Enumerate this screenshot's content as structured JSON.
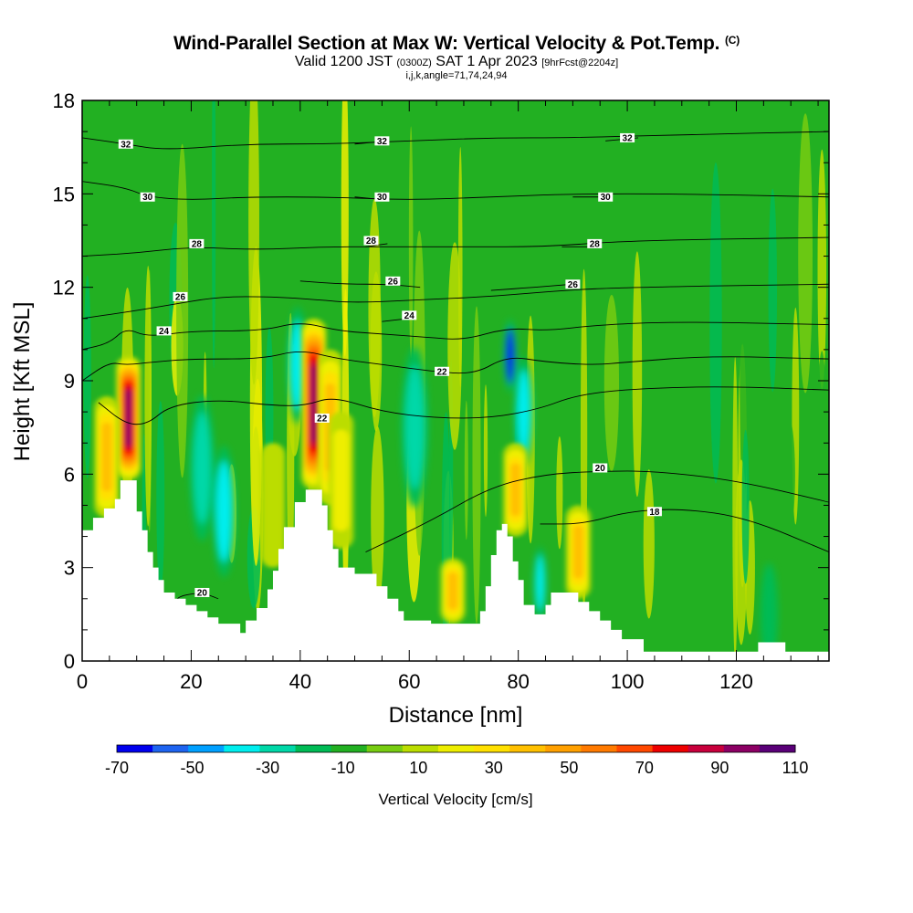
{
  "title": {
    "main": "Wind-Parallel Section at Max W: Vertical Velocity & Pot.Temp.",
    "main_suffix": "(C)",
    "valid_prefix": "Valid 1200 JST",
    "valid_zulu": "(0300Z)",
    "valid_date": "SAT 1 Apr 2023",
    "forecast": "[9hrFcst@2204z]",
    "indices": "i,j,k,angle=71,74,24,94"
  },
  "chart_data": {
    "type": "heatmap",
    "xlabel": "Distance [nm]",
    "ylabel": "Height [Kft MSL]",
    "xlim": [
      0,
      137
    ],
    "ylim": [
      0,
      18
    ],
    "x_ticks": [
      "0",
      "20",
      "40",
      "60",
      "80",
      "100",
      "120"
    ],
    "y_ticks": [
      "0",
      "3",
      "6",
      "9",
      "12",
      "15",
      "18"
    ],
    "colorbar": {
      "label": "Vertical Velocity [cm/s]",
      "tick_labels": [
        "-70",
        "-50",
        "-30",
        "-10",
        "10",
        "30",
        "50",
        "70",
        "90",
        "110"
      ],
      "levels": [
        -70,
        -60,
        -50,
        -40,
        -30,
        -20,
        -10,
        0,
        10,
        20,
        30,
        40,
        50,
        60,
        70,
        80,
        90,
        100,
        110
      ],
      "colors": [
        "#0000ee",
        "#1e64f0",
        "#00a0ff",
        "#00eeee",
        "#00d8a8",
        "#00bb55",
        "#22b022",
        "#77cc11",
        "#bbdd00",
        "#eeee00",
        "#ffe000",
        "#ffc000",
        "#ffa000",
        "#ff7a00",
        "#ff4800",
        "#ee0000",
        "#c8003c",
        "#8c0064",
        "#5a0078"
      ]
    },
    "terrain": [
      [
        0,
        4.2
      ],
      [
        2,
        4.2
      ],
      [
        2,
        4.6
      ],
      [
        4,
        4.6
      ],
      [
        4,
        4.9
      ],
      [
        6,
        4.9
      ],
      [
        6,
        5.2
      ],
      [
        7,
        5.2
      ],
      [
        7,
        5.8
      ],
      [
        10,
        5.8
      ],
      [
        10,
        4.8
      ],
      [
        11,
        4.8
      ],
      [
        11,
        4.2
      ],
      [
        12,
        4.2
      ],
      [
        12,
        3.5
      ],
      [
        13,
        3.5
      ],
      [
        13,
        3.0
      ],
      [
        14,
        3.0
      ],
      [
        14,
        2.6
      ],
      [
        15,
        2.6
      ],
      [
        15,
        2.2
      ],
      [
        17,
        2.2
      ],
      [
        17,
        2.0
      ],
      [
        19,
        2.0
      ],
      [
        19,
        1.8
      ],
      [
        21,
        1.8
      ],
      [
        21,
        1.6
      ],
      [
        23,
        1.6
      ],
      [
        23,
        1.4
      ],
      [
        25,
        1.4
      ],
      [
        25,
        1.2
      ],
      [
        29,
        1.2
      ],
      [
        29,
        0.9
      ],
      [
        30,
        0.9
      ],
      [
        30,
        1.3
      ],
      [
        32,
        1.3
      ],
      [
        32,
        1.7
      ],
      [
        34,
        1.7
      ],
      [
        34,
        2.3
      ],
      [
        35,
        2.3
      ],
      [
        35,
        2.9
      ],
      [
        36,
        2.9
      ],
      [
        36,
        3.6
      ],
      [
        37,
        3.6
      ],
      [
        37,
        4.3
      ],
      [
        39,
        4.3
      ],
      [
        39,
        5.1
      ],
      [
        41,
        5.1
      ],
      [
        41,
        5.5
      ],
      [
        44,
        5.5
      ],
      [
        44,
        5.0
      ],
      [
        45,
        5.0
      ],
      [
        45,
        4.2
      ],
      [
        46,
        4.2
      ],
      [
        46,
        3.6
      ],
      [
        47,
        3.6
      ],
      [
        47,
        3.0
      ],
      [
        50,
        3.0
      ],
      [
        50,
        2.8
      ],
      [
        54,
        2.8
      ],
      [
        54,
        2.4
      ],
      [
        56,
        2.4
      ],
      [
        56,
        2.0
      ],
      [
        58,
        2.0
      ],
      [
        58,
        1.6
      ],
      [
        59,
        1.6
      ],
      [
        59,
        1.3
      ],
      [
        64,
        1.3
      ],
      [
        64,
        1.2
      ],
      [
        73,
        1.2
      ],
      [
        73,
        1.6
      ],
      [
        74,
        1.6
      ],
      [
        74,
        2.4
      ],
      [
        75,
        2.4
      ],
      [
        75,
        3.4
      ],
      [
        76,
        3.4
      ],
      [
        76,
        4.2
      ],
      [
        77,
        4.2
      ],
      [
        77,
        4.4
      ],
      [
        78,
        4.4
      ],
      [
        78,
        4.0
      ],
      [
        79,
        4.0
      ],
      [
        79,
        3.2
      ],
      [
        80,
        3.2
      ],
      [
        80,
        2.6
      ],
      [
        81,
        2.6
      ],
      [
        81,
        1.8
      ],
      [
        83,
        1.8
      ],
      [
        83,
        1.5
      ],
      [
        85,
        1.5
      ],
      [
        85,
        1.8
      ],
      [
        86,
        1.8
      ],
      [
        86,
        2.2
      ],
      [
        91,
        2.2
      ],
      [
        91,
        1.9
      ],
      [
        93,
        1.9
      ],
      [
        93,
        1.6
      ],
      [
        95,
        1.6
      ],
      [
        95,
        1.3
      ],
      [
        97,
        1.3
      ],
      [
        97,
        1.0
      ],
      [
        99,
        1.0
      ],
      [
        99,
        0.7
      ],
      [
        103,
        0.7
      ],
      [
        103,
        0.3
      ],
      [
        118,
        0.3
      ],
      [
        118,
        0.3
      ],
      [
        124,
        0.3
      ],
      [
        124,
        0.6
      ],
      [
        129,
        0.6
      ],
      [
        129,
        0.3
      ],
      [
        137,
        0.3
      ]
    ],
    "updrafts": [
      {
        "x": 8.5,
        "h0": 5.8,
        "h1": 9.8,
        "peak": 100
      },
      {
        "x": 42.5,
        "h0": 5.5,
        "h1": 11.0,
        "peak": 100
      },
      {
        "x": 45.5,
        "h0": 5.0,
        "h1": 10.0,
        "peak": 45
      },
      {
        "x": 4.5,
        "h0": 4.6,
        "h1": 8.5,
        "peak": 40
      },
      {
        "x": 68.0,
        "h0": 1.2,
        "h1": 3.3,
        "peak": 45
      },
      {
        "x": 79.5,
        "h0": 4.0,
        "h1": 7.0,
        "peak": 42
      },
      {
        "x": 91.0,
        "h0": 2.0,
        "h1": 5.0,
        "peak": 45
      },
      {
        "x": 47.5,
        "h0": 3.6,
        "h1": 8.0,
        "peak": 20
      },
      {
        "x": 35.0,
        "h0": 3.0,
        "h1": 7.0,
        "peak": 18
      }
    ],
    "downdrafts": [
      {
        "x": 39.5,
        "y": 9.5,
        "r": 1.6,
        "w": -35
      },
      {
        "x": 26.0,
        "y": 4.8,
        "r": 1.8,
        "w": -35
      },
      {
        "x": 78.5,
        "y": 9.8,
        "r": 1.0,
        "w": -62
      },
      {
        "x": 81.0,
        "y": 8.0,
        "r": 1.5,
        "w": -35
      },
      {
        "x": 22.0,
        "y": 6.2,
        "r": 2.0,
        "w": -22
      },
      {
        "x": 61.0,
        "y": 7.5,
        "r": 2.2,
        "w": -22
      },
      {
        "x": 84.0,
        "y": 2.5,
        "r": 1.0,
        "w": -32
      },
      {
        "x": 126.0,
        "y": 1.5,
        "r": 1.4,
        "w": -12
      }
    ],
    "theta_contours": [
      {
        "label": "18",
        "pts": [
          [
            84,
            4.4
          ],
          [
            92,
            4.4
          ],
          [
            100,
            4.8
          ],
          [
            110,
            4.9
          ],
          [
            122,
            4.6
          ],
          [
            137,
            3.5
          ]
        ],
        "label_at": [
          105,
          4.8
        ]
      },
      {
        "label": "20",
        "pts": [
          [
            52,
            3.5
          ],
          [
            64,
            4.5
          ],
          [
            75,
            5.6
          ],
          [
            85,
            6.0
          ],
          [
            95,
            6.1
          ],
          [
            105,
            6.1
          ],
          [
            120,
            5.8
          ],
          [
            137,
            5.1
          ]
        ],
        "label_at": [
          95,
          6.2
        ]
      },
      {
        "label": "20",
        "pts": [
          [
            17,
            1.9
          ],
          [
            18,
            2.1
          ],
          [
            22,
            2.2
          ],
          [
            25,
            2.0
          ]
        ],
        "label_at": [
          22,
          2.2
        ]
      },
      {
        "label": "22",
        "pts": [
          [
            3,
            8.3
          ],
          [
            8,
            7.6
          ],
          [
            12,
            7.6
          ],
          [
            16,
            8.2
          ],
          [
            25,
            8.4
          ],
          [
            35,
            8.2
          ],
          [
            41,
            8.2
          ],
          [
            46,
            8.5
          ],
          [
            55,
            8.0
          ],
          [
            65,
            7.8
          ],
          [
            75,
            7.8
          ],
          [
            84,
            8.1
          ],
          [
            90,
            8.5
          ],
          [
            98,
            8.7
          ],
          [
            110,
            8.8
          ],
          [
            122,
            8.8
          ],
          [
            137,
            8.7
          ]
        ],
        "label_at": [
          44,
          7.8
        ]
      },
      {
        "label": "22",
        "pts": [
          [
            0,
            9.0
          ],
          [
            5,
            9.6
          ],
          [
            8,
            9.5
          ],
          [
            13,
            9.6
          ],
          [
            20,
            9.7
          ],
          [
            33,
            9.7
          ],
          [
            40,
            10.0
          ],
          [
            47,
            9.7
          ],
          [
            56,
            9.5
          ],
          [
            64,
            9.3
          ],
          [
            72,
            9.2
          ],
          [
            78,
            9.8
          ],
          [
            85,
            9.6
          ],
          [
            94,
            9.5
          ],
          [
            100,
            9.6
          ],
          [
            115,
            9.8
          ],
          [
            137,
            9.7
          ]
        ],
        "label_at": [
          66,
          9.3
        ]
      },
      {
        "label": "24",
        "pts": [
          [
            0,
            10.0
          ],
          [
            5,
            10.2
          ],
          [
            8,
            10.7
          ],
          [
            12,
            10.4
          ],
          [
            20,
            10.6
          ],
          [
            33,
            10.6
          ],
          [
            40,
            10.9
          ],
          [
            47,
            10.6
          ],
          [
            55,
            10.5
          ],
          [
            63,
            10.4
          ],
          [
            70,
            10.3
          ],
          [
            78,
            10.7
          ],
          [
            85,
            10.6
          ],
          [
            95,
            10.8
          ],
          [
            110,
            10.9
          ],
          [
            137,
            10.8
          ]
        ],
        "label_at": [
          15,
          10.6
        ]
      },
      {
        "label": "24",
        "pts": [
          [
            55,
            10.9
          ],
          [
            60,
            11.0
          ]
        ],
        "label_at": [
          60,
          11.1
        ]
      },
      {
        "label": "26",
        "pts": [
          [
            0,
            11.0
          ],
          [
            8,
            11.2
          ],
          [
            15,
            11.4
          ],
          [
            25,
            11.7
          ],
          [
            35,
            11.7
          ],
          [
            43,
            11.6
          ],
          [
            50,
            11.5
          ],
          [
            62,
            11.6
          ],
          [
            75,
            11.7
          ],
          [
            88,
            11.9
          ],
          [
            100,
            12.0
          ],
          [
            137,
            12.1
          ]
        ],
        "label_at": [
          18,
          11.7
        ]
      },
      {
        "label": "26",
        "pts": [
          [
            40,
            12.2
          ],
          [
            48,
            12.1
          ],
          [
            56,
            12.1
          ],
          [
            62,
            12.0
          ]
        ],
        "label_at": [
          57,
          12.2
        ]
      },
      {
        "label": "26",
        "pts": [
          [
            75,
            11.9
          ],
          [
            83,
            12.0
          ],
          [
            90,
            12.1
          ]
        ],
        "label_at": [
          90,
          12.1
        ]
      },
      {
        "label": "28",
        "pts": [
          [
            0,
            13.0
          ],
          [
            10,
            13.1
          ],
          [
            20,
            13.3
          ],
          [
            32,
            13.2
          ],
          [
            44,
            13.3
          ],
          [
            56,
            13.3
          ],
          [
            70,
            13.3
          ],
          [
            85,
            13.3
          ],
          [
            100,
            13.5
          ],
          [
            137,
            13.6
          ]
        ],
        "label_at": [
          21,
          13.4
        ]
      },
      {
        "label": "28",
        "pts": [
          [
            52,
            13.3
          ],
          [
            56,
            13.4
          ]
        ],
        "label_at": [
          53,
          13.5
        ]
      },
      {
        "label": "28",
        "pts": [
          [
            88,
            13.3
          ],
          [
            94,
            13.3
          ]
        ],
        "label_at": [
          94,
          13.4
        ]
      },
      {
        "label": "30",
        "pts": [
          [
            0,
            15.4
          ],
          [
            8,
            15.2
          ],
          [
            12,
            14.9
          ],
          [
            20,
            14.8
          ],
          [
            30,
            14.9
          ],
          [
            45,
            14.9
          ],
          [
            60,
            14.8
          ],
          [
            75,
            14.9
          ],
          [
            90,
            15.0
          ],
          [
            110,
            15.0
          ],
          [
            137,
            14.9
          ]
        ],
        "label_at": [
          12,
          14.9
        ]
      },
      {
        "label": "30",
        "pts": [
          [
            50,
            14.9
          ],
          [
            56,
            14.8
          ]
        ],
        "label_at": [
          55,
          14.9
        ]
      },
      {
        "label": "30",
        "pts": [
          [
            90,
            14.9
          ],
          [
            96,
            14.9
          ]
        ],
        "label_at": [
          96,
          14.9
        ]
      },
      {
        "label": "32",
        "pts": [
          [
            0,
            16.8
          ],
          [
            8,
            16.6
          ],
          [
            15,
            16.4
          ],
          [
            30,
            16.6
          ],
          [
            45,
            16.6
          ],
          [
            60,
            16.7
          ],
          [
            75,
            16.8
          ],
          [
            90,
            16.8
          ],
          [
            110,
            16.9
          ],
          [
            137,
            17.0
          ]
        ],
        "label_at": [
          8,
          16.6
        ]
      },
      {
        "label": "32",
        "pts": [
          [
            50,
            16.6
          ],
          [
            56,
            16.7
          ]
        ],
        "label_at": [
          55,
          16.7
        ]
      },
      {
        "label": "32",
        "pts": [
          [
            96,
            16.7
          ],
          [
            102,
            16.8
          ]
        ],
        "label_at": [
          100,
          16.8
        ]
      }
    ]
  }
}
